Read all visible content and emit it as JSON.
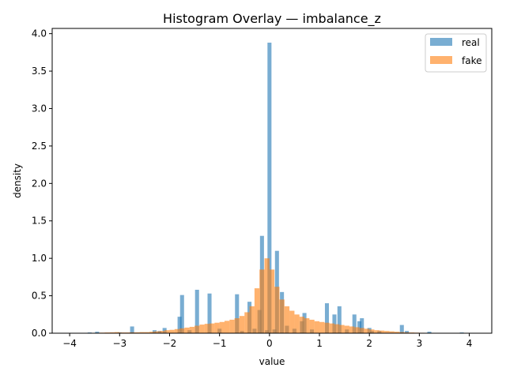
{
  "chart_data": {
    "type": "bar",
    "title": "Histogram Overlay — imbalance_z",
    "xlabel": "value",
    "ylabel": "density",
    "xlim": [
      -4.35,
      4.45
    ],
    "ylim": [
      0,
      4.07
    ],
    "xticks": [
      -4,
      -3,
      -2,
      -1,
      0,
      1,
      2,
      3,
      4
    ],
    "xtick_labels": [
      "−4",
      "−3",
      "−2",
      "−1",
      "0",
      "1",
      "2",
      "3",
      "4"
    ],
    "yticks": [
      0,
      0.5,
      1,
      1.5,
      2,
      2.5,
      3,
      3.5,
      4
    ],
    "ytick_labels": [
      "0.0",
      "0.5",
      "1.0",
      "1.5",
      "2.0",
      "2.5",
      "3.0",
      "3.5",
      "4.0"
    ],
    "grid": false,
    "legend_position": "upper right",
    "series": [
      {
        "name": "real",
        "color": "#1f77b4",
        "alpha": 0.6,
        "bin_width": 0.08,
        "x": [
          -3.6,
          -3.45,
          -3.0,
          -2.75,
          -2.3,
          -2.2,
          -2.1,
          -1.8,
          -1.75,
          -1.6,
          -1.45,
          -1.2,
          -1.0,
          -0.65,
          -0.55,
          -0.4,
          -0.3,
          -0.2,
          -0.15,
          -0.05,
          0.0,
          0.1,
          0.15,
          0.25,
          0.35,
          0.5,
          0.65,
          0.7,
          0.85,
          1.15,
          1.3,
          1.4,
          1.55,
          1.7,
          1.8,
          1.85,
          2.0,
          2.05,
          2.2,
          2.65,
          2.75,
          3.2,
          3.85
        ],
        "y": [
          0.01,
          0.02,
          0.01,
          0.09,
          0.04,
          0.03,
          0.07,
          0.22,
          0.51,
          0.04,
          0.58,
          0.53,
          0.06,
          0.52,
          0.03,
          0.42,
          0.06,
          0.31,
          1.3,
          0.04,
          3.88,
          0.05,
          1.1,
          0.55,
          0.1,
          0.06,
          0.16,
          0.27,
          0.05,
          0.4,
          0.25,
          0.36,
          0.05,
          0.25,
          0.16,
          0.2,
          0.07,
          0.03,
          0.03,
          0.11,
          0.03,
          0.02,
          0.01
        ]
      },
      {
        "name": "fake",
        "color": "#ff7f0e",
        "alpha": 0.6,
        "bin_width": 0.1,
        "x": [
          -3.85,
          -3.75,
          -3.65,
          -3.55,
          -3.45,
          -3.35,
          -3.25,
          -3.15,
          -3.05,
          -2.95,
          -2.85,
          -2.75,
          -2.65,
          -2.55,
          -2.45,
          -2.35,
          -2.25,
          -2.15,
          -2.05,
          -1.95,
          -1.85,
          -1.75,
          -1.65,
          -1.55,
          -1.45,
          -1.35,
          -1.25,
          -1.15,
          -1.05,
          -0.95,
          -0.85,
          -0.75,
          -0.65,
          -0.55,
          -0.45,
          -0.35,
          -0.25,
          -0.15,
          -0.05,
          0.05,
          0.15,
          0.25,
          0.35,
          0.45,
          0.55,
          0.65,
          0.75,
          0.85,
          0.95,
          1.05,
          1.15,
          1.25,
          1.35,
          1.45,
          1.55,
          1.65,
          1.75,
          1.85,
          1.95,
          2.05,
          2.15,
          2.25,
          2.35,
          2.45,
          2.55,
          2.65,
          2.75,
          2.85,
          2.95,
          3.05,
          3.15,
          3.25,
          3.35,
          3.45,
          3.55,
          3.65,
          3.75,
          3.85,
          3.95,
          4.05
        ],
        "y": [
          0.002,
          0.003,
          0.004,
          0.005,
          0.006,
          0.008,
          0.01,
          0.012,
          0.015,
          0.01,
          0.01,
          0.012,
          0.012,
          0.015,
          0.015,
          0.02,
          0.025,
          0.03,
          0.04,
          0.045,
          0.055,
          0.065,
          0.075,
          0.085,
          0.1,
          0.115,
          0.125,
          0.13,
          0.14,
          0.15,
          0.165,
          0.18,
          0.2,
          0.23,
          0.28,
          0.36,
          0.6,
          0.85,
          1.0,
          0.85,
          0.62,
          0.45,
          0.36,
          0.3,
          0.25,
          0.22,
          0.2,
          0.18,
          0.16,
          0.15,
          0.14,
          0.13,
          0.12,
          0.11,
          0.1,
          0.09,
          0.08,
          0.07,
          0.06,
          0.05,
          0.04,
          0.035,
          0.03,
          0.025,
          0.02,
          0.015,
          0.012,
          0.01,
          0.008,
          0.006,
          0.005,
          0.004,
          0.003,
          0.002,
          0.002,
          0.002,
          0.001,
          0.001,
          0.001,
          0.001
        ]
      }
    ]
  }
}
